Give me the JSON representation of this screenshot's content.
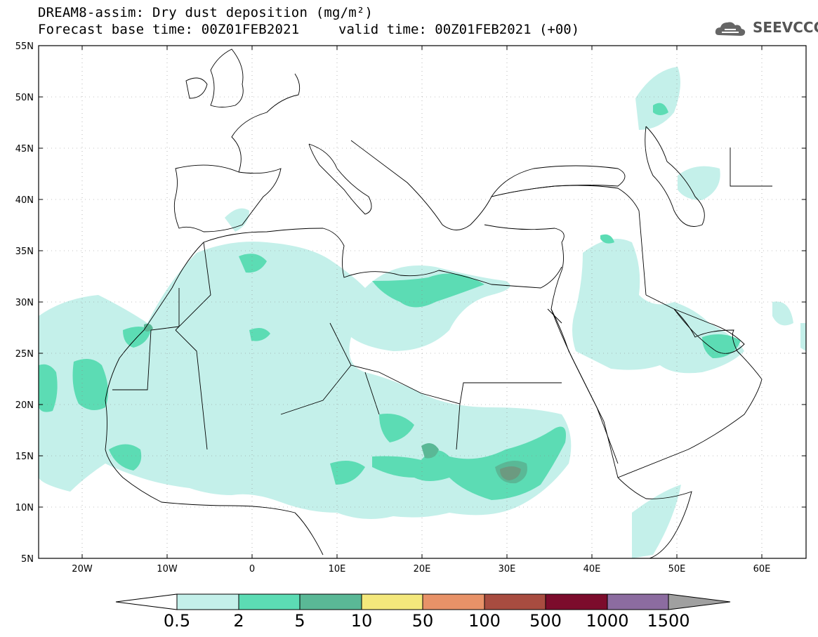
{
  "header": {
    "title_line1": "DREAM8-assim: Dry dust deposition (mg/m²)",
    "title_line2": "Forecast base time: 00Z01FEB2021",
    "valid_time": "valid time: 00Z01FEB2021 (+00)",
    "logo_text": "SEEVCCC"
  },
  "axes": {
    "lat_labels": [
      "55N",
      "50N",
      "45N",
      "40N",
      "35N",
      "30N",
      "25N",
      "20N",
      "15N",
      "10N",
      "5N"
    ],
    "lon_labels": [
      "20W",
      "10W",
      "0",
      "10E",
      "20E",
      "30E",
      "40E",
      "50E",
      "60E"
    ]
  },
  "colorbar": {
    "levels": [
      "0.5",
      "2",
      "5",
      "10",
      "50",
      "100",
      "500",
      "1000",
      "1500"
    ],
    "colors": [
      "#c4f0ea",
      "#5cdcb4",
      "#5ab896",
      "#f4e87c",
      "#e89268",
      "#a84c40",
      "#7c0c2c",
      "#8c6ca0",
      "#a0a0a0"
    ]
  },
  "colors": {
    "light": "#c4f0ea",
    "medium": "#5cdcb4",
    "dark": "#5ab896",
    "darkest": "#6c9a80"
  }
}
